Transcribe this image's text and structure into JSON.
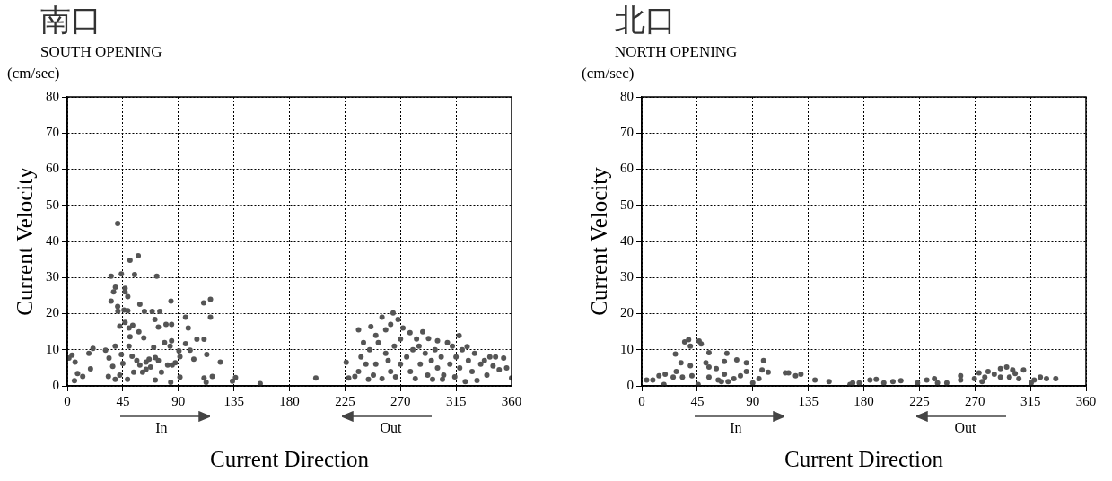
{
  "chart_data": [
    {
      "type": "scatter",
      "title": "南口",
      "subtitle": "SOUTH OPENING",
      "xlabel": "Current Direction",
      "ylabel": "Current Velocity",
      "annotations": [
        "(cm/sec)",
        "In",
        "Out"
      ],
      "color": "#555555",
      "marker": "circle",
      "grid": true,
      "xlim": [
        0,
        360
      ],
      "ylim": [
        0,
        80
      ],
      "xticks": [
        0,
        45,
        90,
        135,
        180,
        225,
        270,
        315,
        360
      ],
      "yticks": [
        0,
        10,
        20,
        30,
        40,
        50,
        60,
        70,
        80
      ],
      "x": [
        40.8,
        50.8,
        57.5,
        35.5,
        43.8,
        54.5,
        72.5,
        39,
        46.8,
        46.8,
        37.5,
        35.5,
        49,
        58.8,
        84,
        110.5,
        116,
        116,
        40.8,
        41,
        46,
        49,
        62.5,
        68.8,
        75,
        71,
        80,
        84.5,
        73.8,
        42.5,
        50,
        53,
        46.8,
        95.8,
        98,
        58,
        50.8,
        62,
        78.8,
        84.5,
        83.3,
        105,
        110.8,
        95.8,
        70,
        38.8,
        31,
        20.8,
        17.5,
        50,
        99.5,
        90.5,
        91.3,
        113,
        102.5,
        124,
        1.3,
        6.3,
        3.8,
        18.8,
        33.8,
        36.8,
        43.8,
        45,
        52.5,
        56.3,
        58.8,
        63.8,
        66.3,
        71.3,
        73.8,
        53.8,
        61,
        63.8,
        67.5,
        76.3,
        81.3,
        85,
        87.5,
        8.3,
        12.5,
        5.8,
        33.3,
        38.8,
        42.5,
        48.8,
        71.3,
        83.8,
        91.3,
        110.8,
        112.5,
        117.5,
        133.8,
        136.3,
        156.3,
        201.4,
        226,
        228,
        233,
        264,
        255,
        268,
        236,
        246,
        317.5,
        324,
        292.7,
        277.7,
        250,
        258,
        272,
        283,
        300,
        308,
        240,
        245,
        238,
        242,
        236,
        248,
        255,
        262,
        270,
        275,
        280,
        285,
        290,
        295,
        300,
        305,
        310,
        315,
        320,
        318,
        325,
        330,
        328,
        335,
        340,
        252,
        258,
        265,
        270,
        278,
        286,
        292,
        298,
        303,
        312,
        260,
        250,
        266,
        282,
        296,
        304,
        322.5,
        342.4,
        347,
        353.6,
        360,
        350,
        345,
        338,
        356,
        332,
        314,
        244,
        288,
        262
      ],
      "values": [
        45,
        34.8,
        36,
        30.4,
        31,
        30.8,
        30.4,
        27.3,
        27,
        26,
        26,
        23.5,
        24.7,
        22.6,
        23.5,
        23,
        24,
        19,
        22,
        20.7,
        21,
        20.8,
        20.6,
        20.6,
        20.6,
        18.4,
        17,
        17,
        16.3,
        16.5,
        16,
        16.8,
        17.6,
        19,
        16,
        15,
        13.6,
        13.3,
        12,
        12.5,
        11,
        12.9,
        12.9,
        11.7,
        10.7,
        11,
        9.9,
        10.4,
        9,
        11,
        9.9,
        9.7,
        8.1,
        8.7,
        7.4,
        6.6,
        7.7,
        6.6,
        8.5,
        4.7,
        7.7,
        5.4,
        8.7,
        6.2,
        8.2,
        7,
        5.8,
        6.6,
        7.4,
        7.8,
        7,
        3.8,
        3.8,
        4.6,
        5.2,
        3.8,
        5.8,
        5.8,
        6.4,
        3.4,
        2.6,
        1.4,
        2.6,
        1.8,
        3,
        1.8,
        1.6,
        1,
        2.4,
        2.2,
        1,
        2.6,
        1.3,
        2.3,
        0.6,
        2.2,
        6.5,
        2.2,
        2.6,
        20.2,
        19,
        18.4,
        15.5,
        16.4,
        13.9,
        10.9,
        13.1,
        14.7,
        14,
        15.5,
        16,
        13,
        12.5,
        12,
        12,
        10,
        8,
        6,
        4,
        3,
        2,
        4,
        6,
        8,
        10,
        11,
        9,
        7,
        5,
        3,
        6,
        8,
        10,
        5,
        7,
        9,
        4,
        6,
        3,
        12,
        9,
        11,
        13,
        4,
        6,
        3,
        10,
        8,
        11,
        7,
        6,
        2.5,
        2,
        1.8,
        1.8,
        1.2,
        8,
        8,
        7.7,
        2.2,
        4.5,
        5.5,
        7,
        5,
        1.5,
        2.5,
        1.8,
        15,
        17
      ]
    },
    {
      "type": "scatter",
      "title": "北口",
      "subtitle": "NORTH OPENING",
      "xlabel": "Current Direction",
      "ylabel": "Current Velocity",
      "annotations": [
        "(cm/sec)",
        "In",
        "Out"
      ],
      "color": "#555555",
      "marker": "circle",
      "grid": true,
      "xlim": [
        0,
        360
      ],
      "ylim": [
        0,
        80
      ],
      "xticks": [
        0,
        45,
        90,
        135,
        180,
        225,
        270,
        315,
        360
      ],
      "yticks": [
        0,
        10,
        20,
        30,
        40,
        50,
        60,
        70,
        80
      ],
      "x": [
        38,
        34.8,
        39.4,
        46.5,
        48.2,
        54.5,
        69,
        27.3,
        31.8,
        39.4,
        52,
        54.5,
        60.4,
        67,
        77,
        84.8,
        98.7,
        102.5,
        97.5,
        84.8,
        80,
        67,
        62,
        54.5,
        45.7,
        40.7,
        33,
        28,
        25.5,
        19,
        14,
        9,
        4,
        18,
        116.4,
        119,
        124.7,
        129,
        140.4,
        151.8,
        171,
        90,
        74.7,
        70,
        64.6,
        95,
        168.8,
        176.3,
        185,
        190,
        196.2,
        203.6,
        210,
        223.5,
        231,
        237.2,
        239.7,
        258.4,
        258.4,
        269.6,
        273.3,
        280.7,
        285.7,
        290.7,
        295.7,
        300.6,
        302.6,
        309.4,
        305.6,
        298,
        290.7,
        278,
        275.8,
        318,
        323,
        328,
        335.5,
        315.6,
        247.2
      ],
      "values": [
        12.8,
        12.2,
        11,
        12.4,
        11.6,
        9.2,
        9,
        8.8,
        6.4,
        5.6,
        6.4,
        5.2,
        4.8,
        6.8,
        7.2,
        6.4,
        7,
        3.8,
        4.4,
        4,
        2.8,
        3.2,
        1.6,
        2.4,
        0.4,
        2.8,
        2.4,
        4,
        2.4,
        3.2,
        2.8,
        1.6,
        1.6,
        0.4,
        3.6,
        3.6,
        2.8,
        3.2,
        1.6,
        1.2,
        0.8,
        0.8,
        2,
        1.2,
        1.2,
        2,
        0.4,
        0.8,
        1.6,
        1.8,
        0.8,
        1.2,
        1.4,
        0.8,
        1.6,
        2,
        0.8,
        2.8,
        1.6,
        2,
        3.6,
        4,
        3.2,
        4.8,
        5.2,
        4.4,
        3.4,
        4.4,
        2,
        2.4,
        2.4,
        2.4,
        1.2,
        1.6,
        2.4,
        2,
        2,
        0.8,
        0.8
      ]
    }
  ]
}
